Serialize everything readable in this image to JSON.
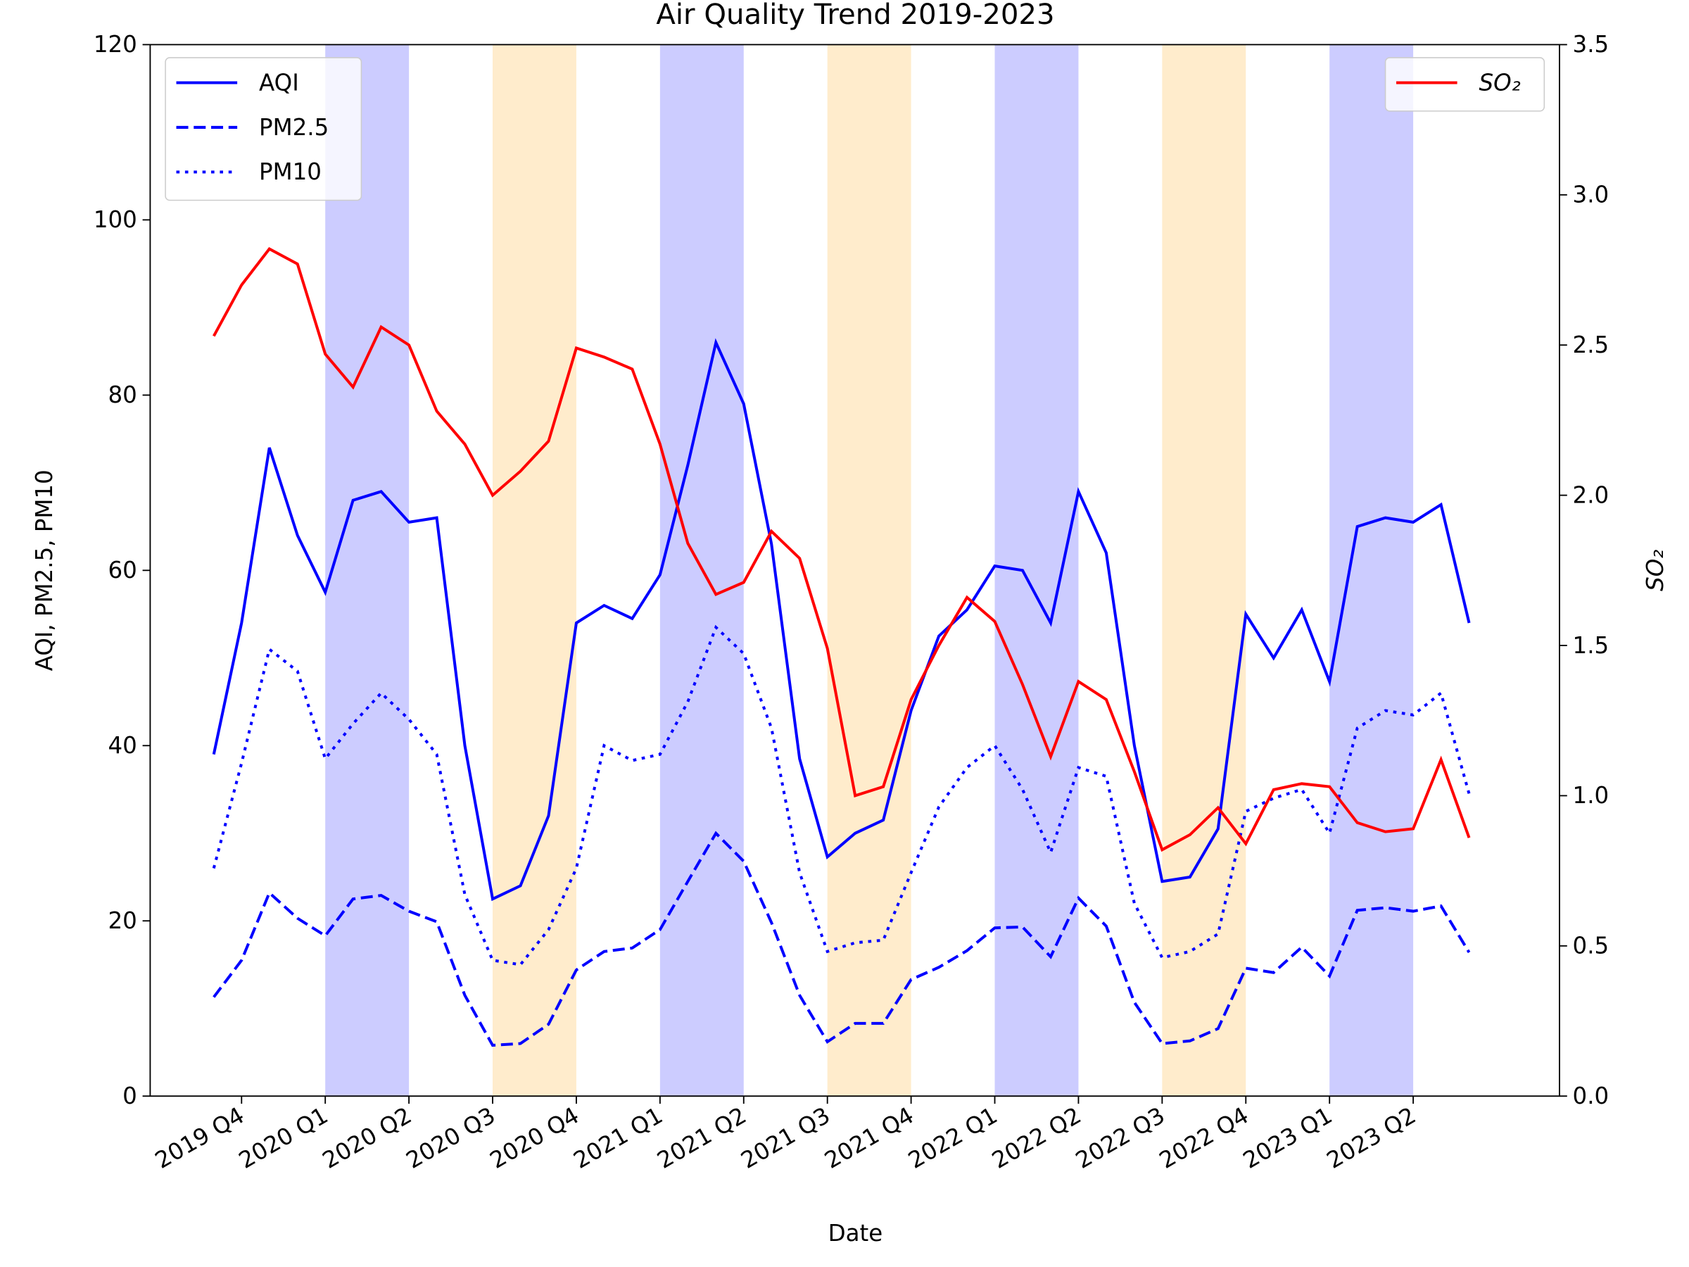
{
  "chart_data": {
    "type": "line",
    "title": "Air Quality Trend 2019-2023",
    "xlabel": "Date",
    "ylabel": "AQI, PM2.5, PM10",
    "y2label": "SO₂",
    "x": [
      2019.667,
      2019.75,
      2019.833,
      2019.917,
      2020,
      2020.083,
      2020.167,
      2020.25,
      2020.333,
      2020.417,
      2020.5,
      2020.583,
      2020.667,
      2020.75,
      2020.833,
      2020.917,
      2021,
      2021.083,
      2021.167,
      2021.25,
      2021.333,
      2021.417,
      2021.5,
      2021.583,
      2021.667,
      2021.75,
      2021.833,
      2021.917,
      2022,
      2022.083,
      2022.167,
      2022.25,
      2022.333,
      2022.417,
      2022.5,
      2022.583,
      2022.667,
      2022.75,
      2022.833,
      2022.917,
      2023,
      2023.083,
      2023.167,
      2023.25,
      2023.333,
      2023.417
    ],
    "xlim": [
      2019.477,
      2023.687
    ],
    "xticks": [
      {
        "value": 2019.75,
        "label": "2019 Q4"
      },
      {
        "value": 2020.0,
        "label": "2020 Q1"
      },
      {
        "value": 2020.25,
        "label": "2020 Q2"
      },
      {
        "value": 2020.5,
        "label": "2020 Q3"
      },
      {
        "value": 2020.75,
        "label": "2020 Q4"
      },
      {
        "value": 2021.0,
        "label": "2021 Q1"
      },
      {
        "value": 2021.25,
        "label": "2021 Q2"
      },
      {
        "value": 2021.5,
        "label": "2021 Q3"
      },
      {
        "value": 2021.75,
        "label": "2021 Q4"
      },
      {
        "value": 2022.0,
        "label": "2022 Q1"
      },
      {
        "value": 2022.25,
        "label": "2022 Q2"
      },
      {
        "value": 2022.5,
        "label": "2022 Q3"
      },
      {
        "value": 2022.75,
        "label": "2022 Q4"
      },
      {
        "value": 2023.0,
        "label": "2023 Q1"
      },
      {
        "value": 2023.25,
        "label": "2023 Q2"
      }
    ],
    "ylim": [
      0,
      120
    ],
    "yticks": [
      0,
      20,
      40,
      60,
      80,
      100,
      120
    ],
    "y2lim": [
      0,
      3.5
    ],
    "y2ticks": [
      {
        "value": 0,
        "label": "0.0"
      },
      0.5,
      {
        "value": 1,
        "label": "1.0"
      },
      1.5,
      {
        "value": 2,
        "label": "2.0"
      },
      2.5,
      {
        "value": 3,
        "label": "3.0"
      },
      3.5
    ],
    "legend": "upper left",
    "legend2": "upper right",
    "shaded_spans": [
      {
        "start": 2020.0,
        "end": 2020.25,
        "color": "#ccccff"
      },
      {
        "start": 2020.5,
        "end": 2020.75,
        "color": "#ffeccc"
      },
      {
        "start": 2021.0,
        "end": 2021.25,
        "color": "#ccccff"
      },
      {
        "start": 2021.5,
        "end": 2021.75,
        "color": "#ffeccc"
      },
      {
        "start": 2022.0,
        "end": 2022.25,
        "color": "#ccccff"
      },
      {
        "start": 2022.5,
        "end": 2022.75,
        "color": "#ffeccc"
      },
      {
        "start": 2023.0,
        "end": 2023.25,
        "color": "#ccccff"
      }
    ],
    "series": [
      {
        "name": "AQI",
        "color": "#0000ff",
        "style": "solid",
        "axis": "y",
        "values": [
          39,
          54,
          74,
          64,
          57.5,
          68,
          69,
          65.5,
          66,
          40,
          22.5,
          24,
          32,
          54,
          56,
          54.5,
          59.5,
          72,
          86,
          79,
          63,
          38.5,
          27.3,
          30,
          31.5,
          44,
          52.5,
          55.5,
          60.5,
          60,
          54,
          69,
          62,
          40,
          24.5,
          25,
          30.5,
          55,
          50,
          55.5,
          47.3,
          65,
          66,
          65.5,
          67.5,
          54
        ]
      },
      {
        "name": "PM2.5",
        "color": "#0000ff",
        "style": "dashed",
        "axis": "y",
        "values": [
          11.3,
          15.5,
          23.2,
          20.3,
          18.3,
          22.5,
          22.9,
          21.1,
          19.9,
          11.5,
          5.8,
          6,
          8.2,
          14.4,
          16.5,
          16.9,
          19,
          24.5,
          30,
          26.8,
          19.8,
          11.5,
          6.2,
          8.3,
          8.3,
          13.3,
          14.7,
          16.6,
          19.2,
          19.3,
          15.9,
          22.6,
          19.4,
          10.7,
          6,
          6.3,
          7.7,
          14.6,
          14.1,
          17,
          13.7,
          21.2,
          21.5,
          21.1,
          21.7,
          16.4
        ]
      },
      {
        "name": "PM10",
        "color": "#0000ff",
        "style": "dotted",
        "axis": "y",
        "values": [
          26,
          38,
          51,
          48.5,
          38.5,
          42.5,
          46,
          43,
          39,
          23,
          15.5,
          15,
          19,
          26,
          40,
          38.3,
          39,
          45,
          53.5,
          50.5,
          42,
          25.5,
          16.5,
          17.5,
          17.8,
          25.5,
          33,
          37.5,
          40,
          35,
          27.8,
          37.5,
          36.5,
          22,
          15.8,
          16.5,
          18.5,
          32.5,
          34,
          35,
          30,
          42,
          44,
          43.5,
          46,
          34.5
        ]
      },
      {
        "name": "SO₂",
        "color": "#ff0000",
        "style": "solid",
        "axis": "y2",
        "values": [
          2.53,
          2.7,
          2.82,
          2.77,
          2.47,
          2.36,
          2.56,
          2.5,
          2.28,
          2.17,
          2,
          2.08,
          2.18,
          2.49,
          2.46,
          2.42,
          2.17,
          1.84,
          1.67,
          1.71,
          1.88,
          1.79,
          1.49,
          1,
          1.03,
          1.32,
          1.5,
          1.66,
          1.58,
          1.37,
          1.13,
          1.38,
          1.32,
          1.08,
          0.82,
          0.87,
          0.96,
          0.84,
          1.02,
          1.04,
          1.03,
          0.91,
          0.88,
          0.89,
          1.12,
          0.86
        ]
      }
    ]
  }
}
